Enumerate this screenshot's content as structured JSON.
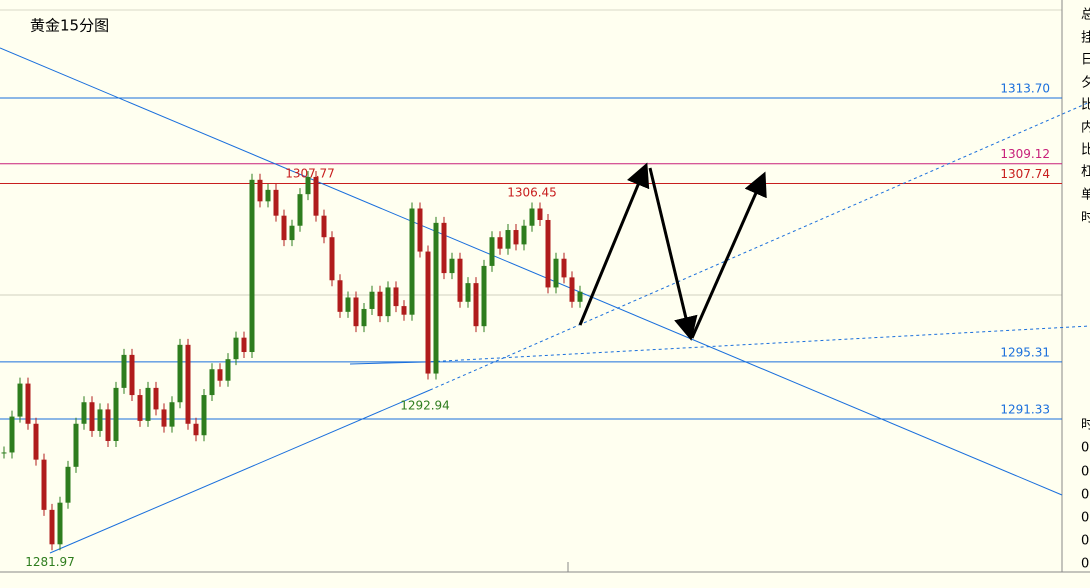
{
  "chart_data": {
    "type": "candlestick",
    "title": "黄金15分图",
    "ylim": [
      1280.67,
      1320.53
    ],
    "up_color": "#2e7d1e",
    "down_color": "#b01c1c",
    "values": [
      1289.0,
      1291.5,
      1293.8,
      1291.0,
      1288.5,
      1285.0,
      1282.6,
      1285.5,
      1288.0,
      1291.0,
      1292.5,
      1290.5,
      1292.0,
      1289.8,
      1293.5,
      1295.8,
      1293.0,
      1291.2,
      1293.5,
      1292.0,
      1290.8,
      1292.5,
      1296.5,
      1291.0,
      1290.2,
      1293.0,
      1294.8,
      1294.0,
      1295.5,
      1297.0,
      1296.0,
      1308.0,
      1306.5,
      1307.3,
      1305.5,
      1303.8,
      1304.8,
      1307.0,
      1308.2,
      1305.5,
      1304.0,
      1301.0,
      1298.8,
      1299.8,
      1297.8,
      1299.0,
      1300.2,
      1298.5,
      1300.5,
      1299.2,
      1298.6,
      1306.0,
      1303.0,
      1294.5,
      1305.0,
      1301.5,
      1302.5,
      1299.5,
      1300.8,
      1297.8,
      1302.0,
      1304.0,
      1303.2,
      1304.5,
      1303.5,
      1304.8,
      1306.0,
      1305.2,
      1300.5,
      1302.5,
      1301.2,
      1299.5,
      1300.2
    ],
    "price_lines": [
      {
        "value": 1313.7,
        "label": "1313.70",
        "color": "#1a6fdc"
      },
      {
        "value": 1309.12,
        "color": "#c8207a"
      },
      {
        "value": 1307.74,
        "color": "#c81e1e"
      },
      {
        "value": 1295.31,
        "color": "#1a6fdc"
      },
      {
        "value": 1291.33,
        "color": "#1a6fdc"
      }
    ],
    "annotations": [
      {
        "value": 1307.77,
        "color": "#c81e1e"
      },
      {
        "value": 1306.45,
        "color": "#c81e1e"
      },
      {
        "value": 1292.94,
        "color": "#2e7d1e"
      },
      {
        "value": 1281.97,
        "color": "#2e7d1e"
      }
    ],
    "side_panel": [
      "总",
      "挂",
      "日",
      "夕",
      "比",
      "内",
      "比",
      "杠",
      "单",
      "时",
      "时",
      "0",
      "0",
      "0",
      "0",
      "0",
      "0"
    ]
  }
}
